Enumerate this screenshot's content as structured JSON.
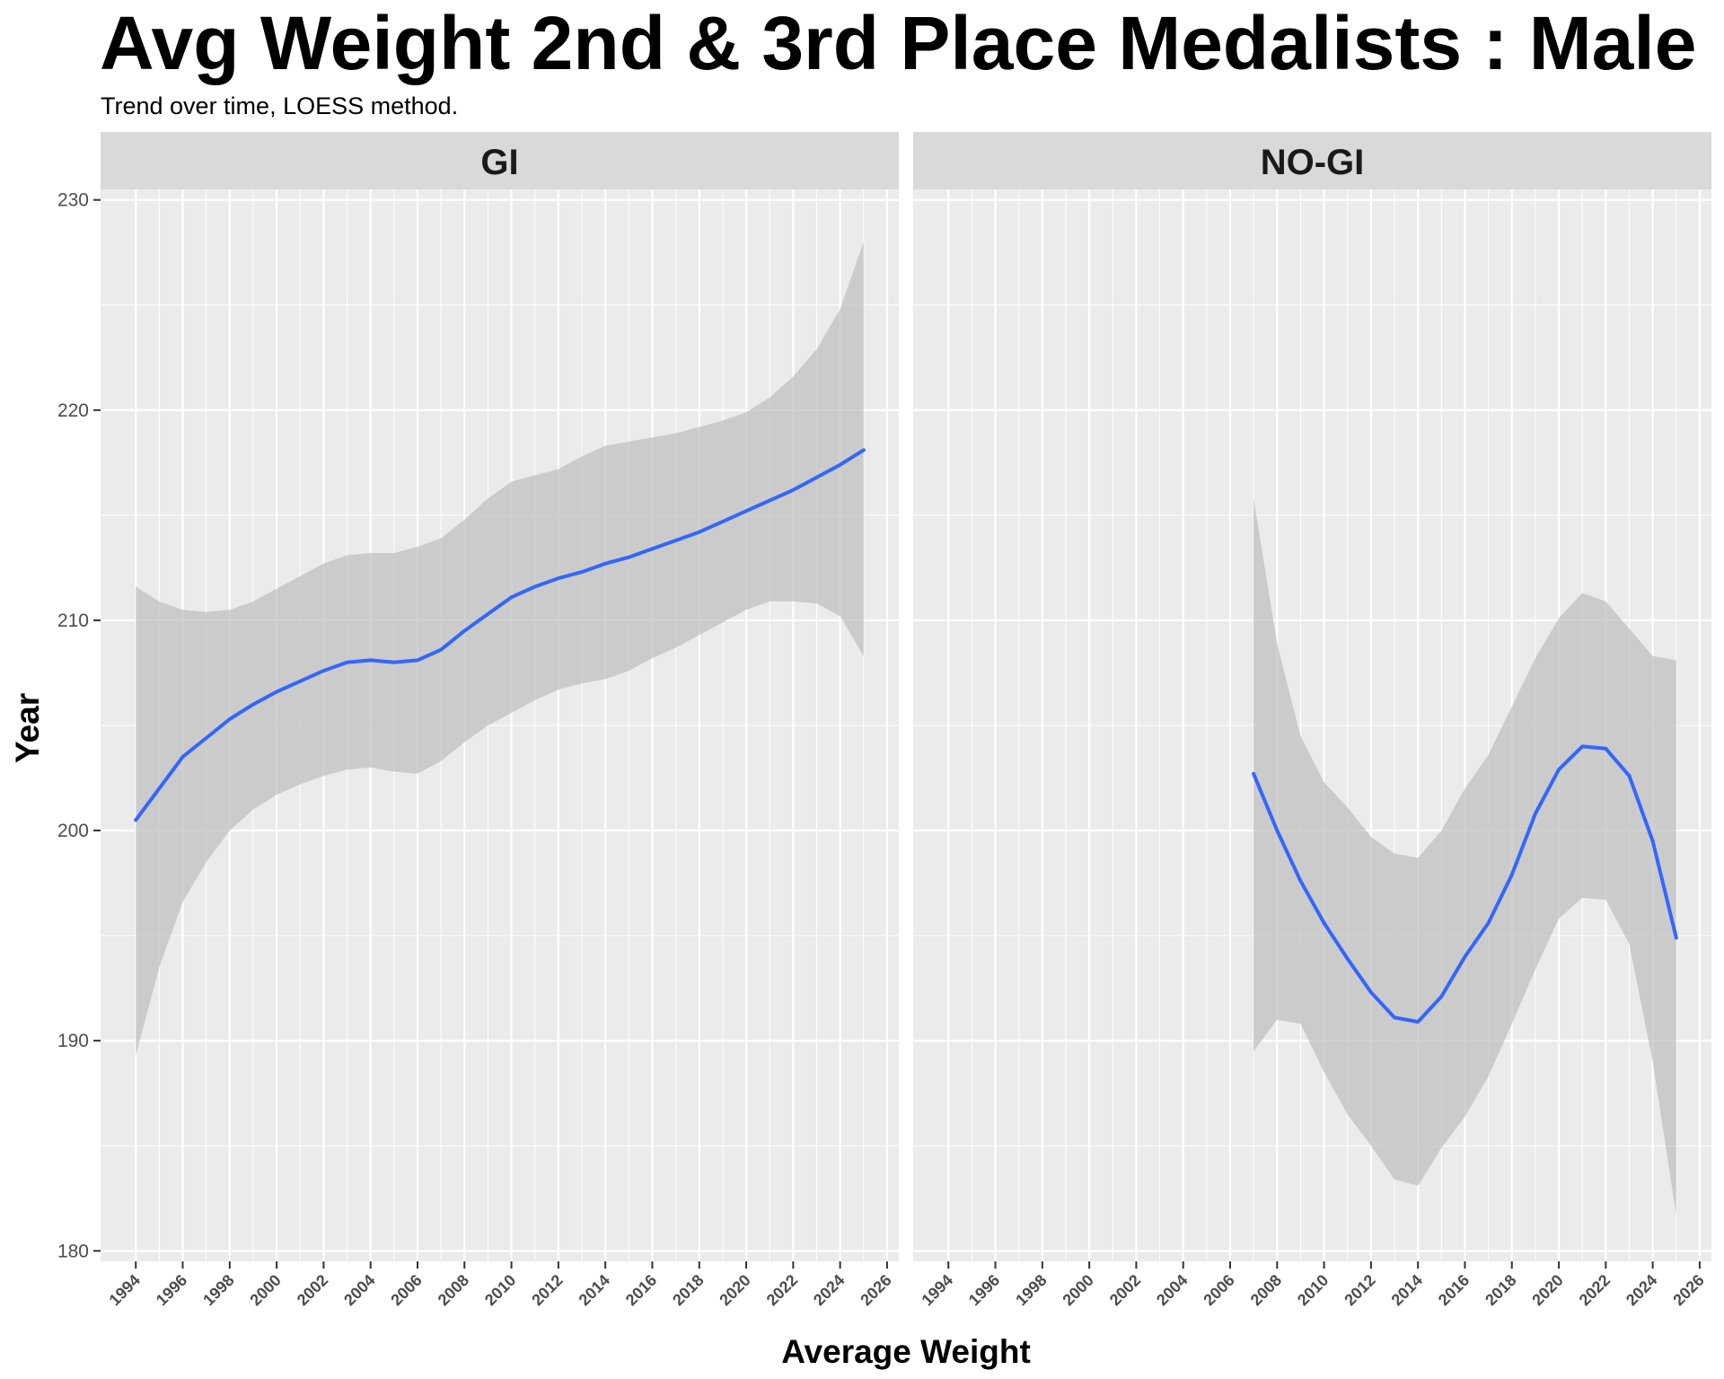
{
  "title": "Avg Weight 2nd & 3rd Place Medalists : Male",
  "subtitle": "Trend over time, LOESS method.",
  "chart_data": {
    "type": "line",
    "method": "LOESS",
    "xlabel": "Average Weight",
    "ylabel": "Year",
    "ylim": [
      179.5,
      230.5
    ],
    "xlim": [
      1992.5,
      2026.5
    ],
    "yticks": [
      180,
      190,
      200,
      210,
      220,
      230
    ],
    "xticks": [
      1994,
      1996,
      1998,
      2000,
      2002,
      2004,
      2006,
      2008,
      2010,
      2012,
      2014,
      2016,
      2018,
      2020,
      2022,
      2024,
      2026
    ],
    "grid": true,
    "line_color": "#3366FF",
    "ribbon_color": "#bdbdbd",
    "panel_background": "#EBEBEB",
    "strip_background": "#D9D9D9",
    "panels": [
      {
        "label": "GI",
        "x": [
          1994,
          1995,
          1996,
          1997,
          1998,
          1999,
          2000,
          2001,
          2002,
          2003,
          2004,
          2005,
          2006,
          2007,
          2008,
          2009,
          2010,
          2011,
          2012,
          2013,
          2014,
          2015,
          2016,
          2017,
          2018,
          2019,
          2020,
          2021,
          2022,
          2023,
          2024,
          2025
        ],
        "fit": [
          200.5,
          202.0,
          203.5,
          204.4,
          205.3,
          206.0,
          206.6,
          207.1,
          207.6,
          208.0,
          208.1,
          208.0,
          208.1,
          208.6,
          209.5,
          210.3,
          211.1,
          211.6,
          212.0,
          212.3,
          212.7,
          213.0,
          213.4,
          213.8,
          214.2,
          214.7,
          215.2,
          215.7,
          216.2,
          216.8,
          217.4,
          218.1
        ],
        "lower": [
          189.3,
          193.5,
          196.6,
          198.5,
          200.0,
          201.0,
          201.7,
          202.2,
          202.6,
          202.9,
          203.0,
          202.8,
          202.7,
          203.3,
          204.2,
          205.0,
          205.6,
          206.2,
          206.7,
          207.0,
          207.2,
          207.6,
          208.2,
          208.7,
          209.3,
          209.9,
          210.5,
          210.9,
          210.9,
          210.8,
          210.2,
          208.3
        ],
        "upper": [
          211.6,
          210.9,
          210.5,
          210.4,
          210.5,
          210.9,
          211.5,
          212.1,
          212.7,
          213.1,
          213.2,
          213.2,
          213.5,
          213.9,
          214.8,
          215.8,
          216.6,
          216.9,
          217.2,
          217.8,
          218.3,
          218.5,
          218.7,
          218.9,
          219.2,
          219.5,
          219.9,
          220.6,
          221.6,
          222.9,
          224.8,
          228.0
        ]
      },
      {
        "label": "NO-GI",
        "x": [
          2007,
          2008,
          2009,
          2010,
          2011,
          2012,
          2013,
          2014,
          2015,
          2016,
          2017,
          2018,
          2019,
          2020,
          2021,
          2022,
          2023,
          2024,
          2025
        ],
        "fit": [
          202.7,
          200.0,
          197.6,
          195.6,
          193.9,
          192.3,
          191.1,
          190.9,
          192.1,
          194.0,
          195.6,
          197.9,
          200.8,
          202.9,
          204.0,
          203.9,
          202.6,
          199.5,
          194.9
        ],
        "lower": [
          189.5,
          191.0,
          190.8,
          188.5,
          186.5,
          185.0,
          183.4,
          183.1,
          184.9,
          186.4,
          188.3,
          190.8,
          193.4,
          195.8,
          196.8,
          196.7,
          194.6,
          189.0,
          181.7
        ],
        "upper": [
          215.8,
          208.9,
          204.5,
          202.3,
          201.1,
          199.7,
          198.9,
          198.7,
          200.0,
          202.0,
          203.6,
          205.9,
          208.2,
          210.1,
          211.3,
          210.9,
          209.6,
          208.3,
          208.1
        ]
      }
    ]
  }
}
